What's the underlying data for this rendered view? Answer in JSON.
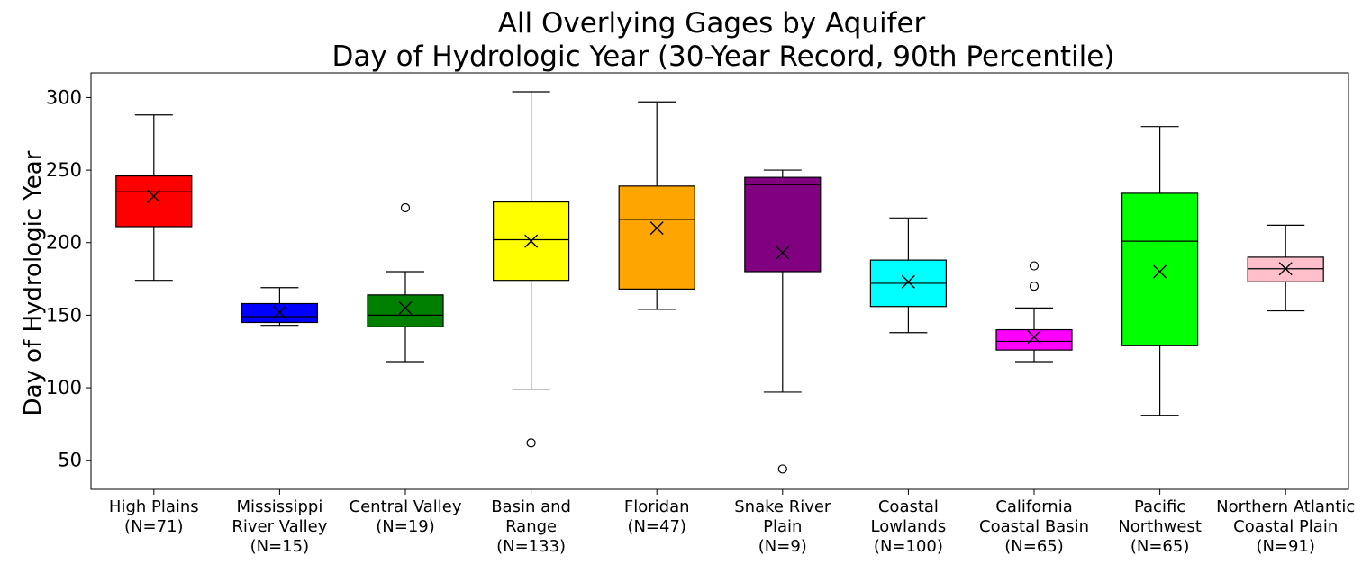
{
  "chart_data": {
    "type": "box",
    "title": "All Overlying Gages by Aquifer",
    "subtitle": "Day of Hydrologic Year (30-Year Record, 90th Percentile)",
    "xlabel": "",
    "ylabel": "Day of Hydrologic Year",
    "ylim": [
      30,
      317
    ],
    "yticks": [
      50,
      100,
      150,
      200,
      250,
      300
    ],
    "grid": false,
    "legend": "none",
    "mean_marker": "x",
    "outlier_marker": "open-circle",
    "categories": [
      {
        "label_lines": [
          "High Plains",
          "(N=71)"
        ],
        "color": "#ff0000",
        "whisker_low": 174,
        "q1": 211,
        "median": 235,
        "q3": 246,
        "whisker_high": 288,
        "mean": 232,
        "outliers": []
      },
      {
        "label_lines": [
          "Mississippi",
          "River Valley",
          "(N=15)"
        ],
        "color": "#0000ff",
        "whisker_low": 143,
        "q1": 145,
        "median": 149,
        "q3": 158,
        "whisker_high": 169,
        "mean": 152,
        "outliers": []
      },
      {
        "label_lines": [
          "Central Valley",
          "(N=19)"
        ],
        "color": "#008000",
        "whisker_low": 118,
        "q1": 142,
        "median": 150,
        "q3": 164,
        "whisker_high": 180,
        "mean": 155,
        "outliers": [
          224
        ]
      },
      {
        "label_lines": [
          "Basin and",
          "Range",
          "(N=133)"
        ],
        "color": "#ffff00",
        "whisker_low": 99,
        "q1": 174,
        "median": 202,
        "q3": 228,
        "whisker_high": 304,
        "mean": 201,
        "outliers": [
          62
        ]
      },
      {
        "label_lines": [
          "Floridan",
          "(N=47)"
        ],
        "color": "#ffa500",
        "whisker_low": 154,
        "q1": 168,
        "median": 216,
        "q3": 239,
        "whisker_high": 297,
        "mean": 210,
        "outliers": []
      },
      {
        "label_lines": [
          "Snake River",
          "Plain",
          "(N=9)"
        ],
        "color": "#800080",
        "whisker_low": 97,
        "q1": 180,
        "median": 240,
        "q3": 245,
        "whisker_high": 250,
        "mean": 193,
        "outliers": [
          44
        ]
      },
      {
        "label_lines": [
          "Coastal",
          "Lowlands",
          "(N=100)"
        ],
        "color": "#00ffff",
        "whisker_low": 138,
        "q1": 156,
        "median": 172,
        "q3": 188,
        "whisker_high": 217,
        "mean": 173,
        "outliers": []
      },
      {
        "label_lines": [
          "California",
          "Coastal Basin",
          "(N=65)"
        ],
        "color": "#ff00ff",
        "whisker_low": 118,
        "q1": 126,
        "median": 132,
        "q3": 140,
        "whisker_high": 155,
        "mean": 135,
        "outliers": [
          170,
          184
        ]
      },
      {
        "label_lines": [
          "Pacific",
          "Northwest",
          "(N=65)"
        ],
        "color": "#00ff00",
        "whisker_low": 81,
        "q1": 129,
        "median": 201,
        "q3": 234,
        "whisker_high": 280,
        "mean": 180,
        "outliers": []
      },
      {
        "label_lines": [
          "Northern Atlantic",
          "Coastal Plain",
          "(N=91)"
        ],
        "color": "#ffc0cb",
        "whisker_low": 153,
        "q1": 173,
        "median": 182,
        "q3": 190,
        "whisker_high": 212,
        "mean": 182,
        "outliers": []
      }
    ]
  }
}
